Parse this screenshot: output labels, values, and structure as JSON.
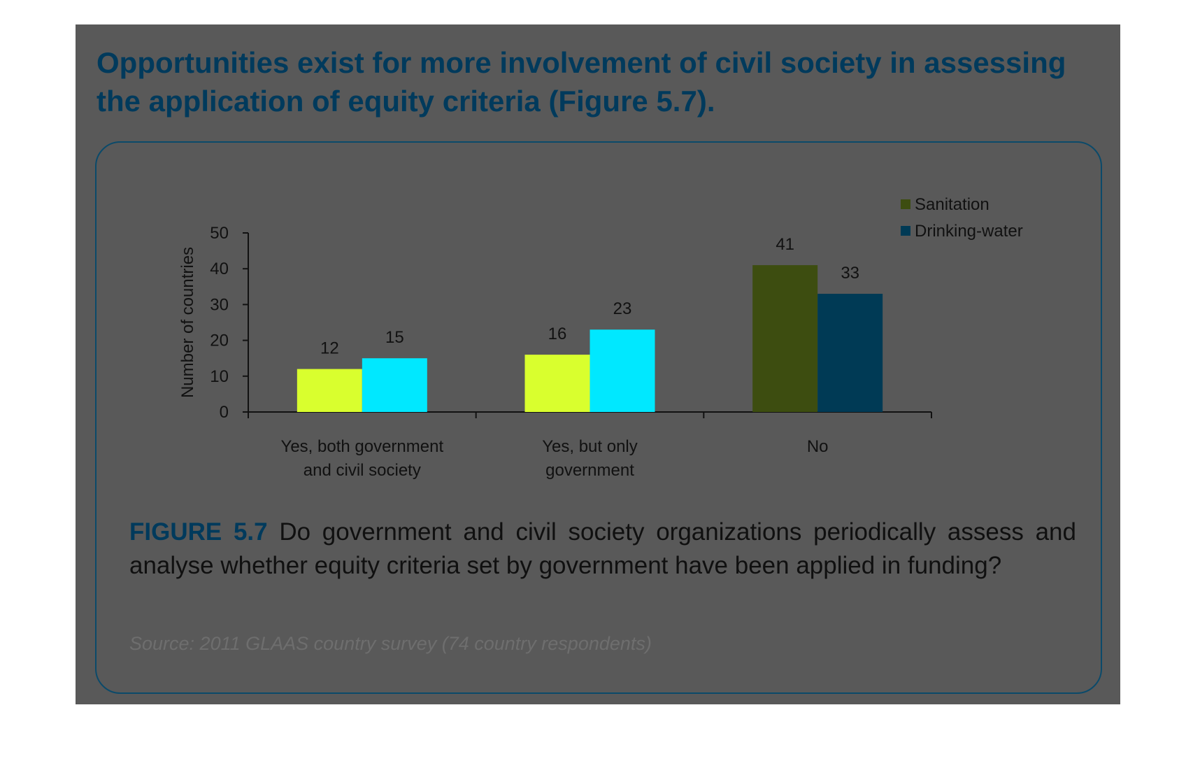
{
  "heading": "Opportunities exist for more involvement of civil society in assessing the application of equity criteria (Figure 5.7).",
  "caption": {
    "figure_label": "FIGURE 5.7",
    "text": "Do government and civil society organizations periodically assess and analyse whether equity criteria set by government have been applied in funding?"
  },
  "source": "Source: 2011 GLAAS country survey (74 country respondents)",
  "colors": {
    "panel_background": "#595959",
    "heading": "#003a5c",
    "sanitation_lit": "#d9ff2e",
    "drinking_water_lit": "#00e8ff",
    "sanitation": "#3d4d10",
    "drinking_water": "#003a55"
  },
  "chart_data": {
    "type": "bar",
    "ylabel": "Number of countries",
    "ylim": [
      0,
      50
    ],
    "yticks": [
      0,
      10,
      20,
      30,
      40,
      50
    ],
    "categories": [
      [
        "Yes, both government",
        "and civil society"
      ],
      [
        "Yes, but only",
        "government"
      ],
      [
        "No"
      ]
    ],
    "series": [
      {
        "name": "Sanitation",
        "values": [
          12,
          16,
          41
        ]
      },
      {
        "name": "Drinking-water",
        "values": [
          15,
          23,
          33
        ]
      }
    ],
    "legend_position": "top-right",
    "grid": false
  }
}
